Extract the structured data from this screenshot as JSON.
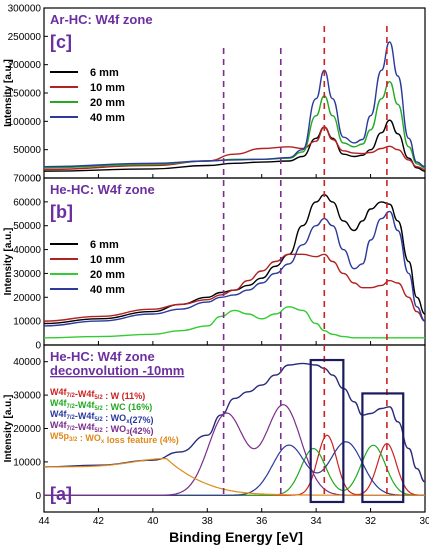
{
  "figure": {
    "xlabel": "Binding Energy [eV]",
    "ylabel": "Intensity [a.u.]",
    "x_ticks": [
      "44",
      "42",
      "40",
      "38",
      "36",
      "34",
      "32",
      "30"
    ]
  },
  "chart_data": [
    {
      "type": "line",
      "panel": "c",
      "panel_label": "[c]",
      "title": "Ar-HC: W4f zone",
      "xlabel": "Binding Energy [eV]",
      "ylabel": "Intensity [a.u.]",
      "xlim": [
        44,
        30
      ],
      "ylim": [
        0,
        300000
      ],
      "y_ticks": [
        "0",
        "50000",
        "100000",
        "150000",
        "200000",
        "250000",
        "300000"
      ],
      "legend_position": "middle-left",
      "grid": false,
      "series": [
        {
          "name": "6 mm",
          "color": "#000000",
          "x": [
            44,
            40,
            38,
            37,
            36,
            35,
            34.5,
            34,
            33.7,
            33.4,
            33,
            32.6,
            32.3,
            32,
            31.6,
            31.3,
            31,
            30.6,
            30.3,
            30
          ],
          "y": [
            12000,
            16000,
            22000,
            26000,
            28000,
            30000,
            38000,
            70000,
            90000,
            70000,
            42000,
            38000,
            40000,
            50000,
            80000,
            102000,
            78000,
            35000,
            18000,
            12000
          ]
        },
        {
          "name": "10 mm",
          "color": "#b22222",
          "x": [
            44,
            40,
            38,
            37,
            36,
            35,
            34.5,
            34,
            33.7,
            33.4,
            33,
            32.6,
            32.3,
            32,
            31.6,
            31.3,
            31,
            30.6,
            30.3,
            30
          ],
          "y": [
            15000,
            22000,
            30000,
            42000,
            52000,
            55000,
            52000,
            65000,
            90000,
            68000,
            48000,
            44000,
            43000,
            45000,
            52000,
            56000,
            50000,
            32000,
            20000,
            15000
          ]
        },
        {
          "name": "20 mm",
          "color": "#22aa22",
          "x": [
            44,
            40,
            38,
            37,
            36,
            35,
            34.5,
            34,
            33.7,
            33.4,
            33,
            32.6,
            32.3,
            32,
            31.6,
            31.3,
            31,
            30.6,
            30.3,
            30
          ],
          "y": [
            18000,
            24000,
            30000,
            33000,
            33000,
            35000,
            46000,
            110000,
            145000,
            110000,
            62000,
            55000,
            60000,
            85000,
            140000,
            170000,
            130000,
            55000,
            25000,
            18000
          ]
        },
        {
          "name": "40 mm",
          "color": "#2b3a9c",
          "x": [
            44,
            40,
            38,
            37,
            36,
            35,
            34.5,
            34,
            33.7,
            33.4,
            33,
            32.6,
            32.3,
            32,
            31.6,
            31.3,
            31,
            30.6,
            30.3,
            30
          ],
          "y": [
            20000,
            26000,
            30000,
            32000,
            33000,
            36000,
            50000,
            140000,
            190000,
            140000,
            72000,
            62000,
            68000,
            110000,
            190000,
            240000,
            180000,
            70000,
            28000,
            20000
          ]
        }
      ]
    },
    {
      "type": "line",
      "panel": "b",
      "panel_label": "[b]",
      "title": "He-HC: W4f zone",
      "xlabel": "Binding Energy [eV]",
      "ylabel": "Intensity [a.u.]",
      "xlim": [
        44,
        30
      ],
      "ylim": [
        0,
        70000
      ],
      "y_ticks": [
        "0",
        "10000",
        "20000",
        "30000",
        "40000",
        "50000",
        "60000",
        "70000"
      ],
      "legend_position": "middle-left",
      "grid": false,
      "series": [
        {
          "name": "6 mm",
          "color": "#000000",
          "x": [
            44,
            42,
            40,
            39,
            38,
            37.5,
            37,
            36.5,
            36,
            35.5,
            35,
            34.5,
            34,
            33.7,
            33.4,
            33,
            32.6,
            32.3,
            32,
            31.6,
            31.3,
            31,
            30.6,
            30.3,
            30
          ],
          "y": [
            9000,
            11000,
            14000,
            17000,
            20000,
            22000,
            23000,
            25000,
            28000,
            33000,
            38000,
            50000,
            60000,
            63000,
            60000,
            52000,
            48000,
            52000,
            57000,
            60000,
            59000,
            52000,
            35000,
            20000,
            13000
          ]
        },
        {
          "name": "10 mm",
          "color": "#b22222",
          "x": [
            44,
            42,
            40,
            39,
            38,
            37.5,
            37,
            36.5,
            36,
            35.5,
            35,
            34.5,
            34,
            33.7,
            33.4,
            33,
            32.6,
            32.3,
            32,
            31.6,
            31.3,
            31,
            30.6,
            30.3,
            30
          ],
          "y": [
            10000,
            12000,
            15000,
            17000,
            19000,
            21000,
            23000,
            27000,
            31000,
            35000,
            38000,
            38000,
            37000,
            38000,
            35000,
            30000,
            26000,
            24000,
            24000,
            25000,
            27000,
            26000,
            20000,
            14000,
            10000
          ]
        },
        {
          "name": "20 mm",
          "color": "#33cc33",
          "x": [
            44,
            42,
            40,
            39,
            38,
            37.5,
            37,
            36.5,
            36,
            35.5,
            35,
            34.5,
            34,
            33.7,
            33.4,
            33,
            32.6,
            32.3,
            32,
            31.6,
            31.3,
            31,
            30.6,
            30.3,
            30
          ],
          "y": [
            3000,
            3500,
            4500,
            6000,
            8000,
            12000,
            14500,
            13000,
            11000,
            13000,
            16000,
            14500,
            9000,
            6000,
            4500,
            3500,
            3000,
            3000,
            3000,
            3000,
            3000,
            3000,
            3000,
            3000,
            3000
          ]
        },
        {
          "name": "40 mm",
          "color": "#2b3a9c",
          "x": [
            44,
            42,
            40,
            39,
            38,
            37.5,
            37,
            36.5,
            36,
            35.5,
            35,
            34.5,
            34,
            33.7,
            33.4,
            33,
            32.6,
            32.3,
            32,
            31.6,
            31.3,
            31,
            30.6,
            30.3,
            30
          ],
          "y": [
            8000,
            10000,
            13000,
            15000,
            18000,
            20000,
            21000,
            23000,
            26000,
            30000,
            34000,
            42000,
            50000,
            53000,
            50000,
            40000,
            32000,
            34000,
            44000,
            53000,
            56000,
            48000,
            30000,
            16000,
            10000
          ]
        }
      ]
    },
    {
      "type": "line",
      "panel": "a",
      "panel_label": "[a]",
      "title": "He-HC: W4f zone",
      "subtitle": "deconvolution -10mm",
      "xlabel": "Binding Energy [eV]",
      "ylabel": "Intensity [a.u.]",
      "xlim": [
        44,
        30
      ],
      "ylim": [
        -5000,
        45000
      ],
      "y_ticks": [
        "0",
        "10000",
        "20000",
        "30000",
        "40000"
      ],
      "legend_position": "middle-left",
      "grid": false,
      "annotations": [
        {
          "label": "W4f",
          "sub1": "7/2",
          "mid": "-W4f",
          "sub2": "5/2",
          "tail": " : W (11%)",
          "color": "#cc2222"
        },
        {
          "label": "W4f",
          "sub1": "7/2",
          "mid": "-W4f",
          "sub2": "5/2",
          "tail": " : WC (16%)",
          "color": "#22aa22"
        },
        {
          "label": "W4f",
          "sub1": "7/2",
          "mid": "-W4f",
          "sub2": "5/2",
          "tail": " : WO",
          "sub3": "x",
          "tail2": "(27%)",
          "color": "#2b3a9c"
        },
        {
          "label": "W4f",
          "sub1": "7/2",
          "mid": "-W4f",
          "sub2": "5/2",
          "tail": " : WO",
          "sub3": "3",
          "tail2": "(42%)",
          "color": "#7a2f8a"
        },
        {
          "label": "W5p",
          "sub1": "3/2",
          "mid": " : WO",
          "sub2": "x",
          "tail": " loss feature (4%)",
          "color": "#e08a1a"
        }
      ],
      "series": [
        {
          "name": "envelope",
          "color": "#2b2b7a",
          "x": [
            44,
            42,
            40,
            39,
            38,
            37.5,
            37,
            36.5,
            36,
            35.5,
            35,
            34.5,
            34,
            33.7,
            33.4,
            33,
            32.6,
            32.3,
            32,
            31.6,
            31.3,
            31,
            30.6,
            30.3,
            30
          ],
          "y": [
            8500,
            9000,
            10500,
            13000,
            18000,
            24000,
            29000,
            31000,
            33000,
            36000,
            39000,
            39500,
            39000,
            38000,
            36000,
            32000,
            28000,
            24000,
            24500,
            26000,
            26500,
            22000,
            14000,
            8000,
            4000
          ]
        },
        {
          "name": "W",
          "color": "#cc2222",
          "peaks": [
            [
              33.6,
              18000,
              0.35
            ],
            [
              31.4,
              15500,
              0.35
            ]
          ],
          "baseline": 0
        },
        {
          "name": "WC",
          "color": "#22aa22",
          "peaks": [
            [
              34.1,
              14000,
              0.45
            ],
            [
              31.9,
              15000,
              0.45
            ]
          ],
          "baseline": 0
        },
        {
          "name": "WOx",
          "color": "#2b3a9c",
          "peaks": [
            [
              35.0,
              15000,
              0.6
            ],
            [
              32.9,
              16000,
              0.6
            ]
          ],
          "baseline": 0
        },
        {
          "name": "WO3",
          "color": "#7a2f8a",
          "peaks": [
            [
              37.3,
              24500,
              0.65
            ],
            [
              35.2,
              27000,
              0.65
            ]
          ],
          "baseline": 0
        },
        {
          "name": "W5p loss",
          "color": "#e08a1a",
          "peaks": [
            [
              39.5,
              2500,
              1.2
            ]
          ],
          "baseline": 8500
        }
      ]
    }
  ],
  "reference_lines": {
    "purple_dashed_x": [
      37.4,
      35.3
    ],
    "red_dashed_x": [
      33.7,
      31.4
    ],
    "purple_color": "#7a2f8a",
    "red_color": "#cc2222"
  },
  "highlight_boxes": {
    "color": "#1a1a5e",
    "x_ranges": [
      [
        34.2,
        33.0
      ],
      [
        32.3,
        30.8
      ]
    ],
    "y_ranges": [
      [
        -2000,
        40500
      ],
      [
        -2000,
        30500
      ]
    ]
  }
}
